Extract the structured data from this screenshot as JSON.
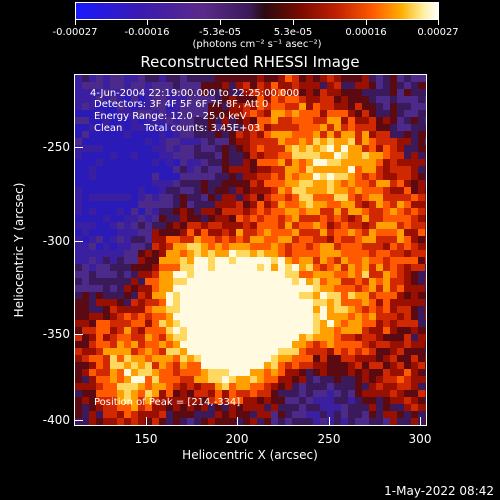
{
  "colorbar": {
    "ticks": [
      "-0.00027",
      "-0.00016",
      "-5.3e-05",
      "5.3e-05",
      "0.00016",
      "0.00027"
    ],
    "units": "(photons cm⁻² s⁻¹ asec⁻²)"
  },
  "title": "Reconstructed RHESSI Image",
  "info": {
    "time": "4-Jun-2004 22:19:00.000 to 22:25:00.000",
    "detectors": "Detectors: 3F 4F 5F 6F 7F 8F, Att 0",
    "energy": "Energy Range: 12.0 - 25.0 keV",
    "clean_label": "Clean",
    "counts": "Total counts: 3.45E+03",
    "peak": "Position of Peak = [214,-334]"
  },
  "axes": {
    "xlabel": "Heliocentric X (arcsec)",
    "ylabel": "Heliocentric Y (arcsec)",
    "xticks": [
      "150",
      "200",
      "250",
      "300"
    ],
    "yticks": [
      "-250",
      "-300",
      "-350",
      "-400"
    ]
  },
  "timestamp": "1-May-2022 08:42",
  "chart_data": {
    "type": "heatmap",
    "title": "Reconstructed RHESSI Image",
    "xlabel": "Heliocentric X (arcsec)",
    "ylabel": "Heliocentric Y (arcsec)",
    "xlim": [
      112,
      302
    ],
    "ylim": [
      -404,
      -215
    ],
    "zlim": [
      -0.00027,
      0.00027
    ],
    "peak": [
      214,
      -334
    ]
  }
}
